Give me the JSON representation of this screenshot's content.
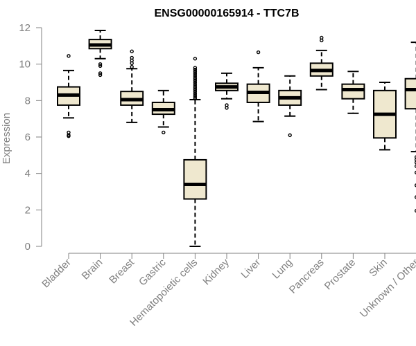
{
  "chart_data": {
    "type": "boxplot",
    "title": "ENSG00000165914 - TTC7B",
    "xlabel": "",
    "ylabel": "Expression",
    "ylim": [
      0,
      12
    ],
    "yticks": [
      0,
      2,
      4,
      6,
      8,
      10,
      12
    ],
    "box_color": "#efe8cf",
    "categories": [
      "Bladder",
      "Brain",
      "Breast",
      "Gastric",
      "Hematopoietic cells",
      "Kidney",
      "Liver",
      "Lung",
      "Pancreas",
      "Prostate",
      "Skin",
      "Unknown / Other"
    ],
    "boxes": [
      {
        "name": "Bladder",
        "min": 7.05,
        "q1": 7.75,
        "median": 8.3,
        "q3": 8.75,
        "max": 9.65,
        "outliers": [
          10.45,
          6.25,
          6.1,
          6.05
        ]
      },
      {
        "name": "Brain",
        "min": 10.3,
        "q1": 10.85,
        "median": 11.05,
        "q3": 11.35,
        "max": 11.85,
        "outliers": [
          10.0,
          9.9,
          9.5,
          9.4
        ]
      },
      {
        "name": "Breast",
        "min": 6.8,
        "q1": 7.75,
        "median": 8.05,
        "q3": 8.5,
        "max": 9.75,
        "outliers": [
          10.7,
          10.35,
          10.2,
          10.05,
          9.85
        ]
      },
      {
        "name": "Gastric",
        "min": 6.55,
        "q1": 7.25,
        "median": 7.5,
        "q3": 7.9,
        "max": 8.55,
        "outliers": [
          6.25
        ]
      },
      {
        "name": "Hematopoietic cells",
        "min": 0.0,
        "q1": 2.6,
        "median": 3.4,
        "q3": 4.75,
        "max": 8.05,
        "outliers": [
          10.3,
          9.8,
          9.7,
          9.6,
          9.5,
          9.4,
          9.3,
          9.2,
          9.1,
          9.0,
          8.9,
          8.8,
          8.7,
          8.6,
          8.5,
          8.4,
          8.3,
          8.2,
          8.1
        ]
      },
      {
        "name": "Kidney",
        "min": 8.1,
        "q1": 8.55,
        "median": 8.75,
        "q3": 8.95,
        "max": 9.5,
        "outliers": [
          7.75,
          7.6
        ]
      },
      {
        "name": "Liver",
        "min": 6.85,
        "q1": 7.9,
        "median": 8.45,
        "q3": 8.9,
        "max": 9.8,
        "outliers": [
          10.65
        ]
      },
      {
        "name": "Lung",
        "min": 7.15,
        "q1": 7.75,
        "median": 8.15,
        "q3": 8.55,
        "max": 9.35,
        "outliers": [
          6.1
        ]
      },
      {
        "name": "Pancreas",
        "min": 8.6,
        "q1": 9.35,
        "median": 9.65,
        "q3": 10.05,
        "max": 10.75,
        "outliers": [
          11.45,
          11.3
        ]
      },
      {
        "name": "Prostate",
        "min": 7.3,
        "q1": 8.1,
        "median": 8.6,
        "q3": 8.9,
        "max": 9.6,
        "outliers": []
      },
      {
        "name": "Skin",
        "min": 5.3,
        "q1": 5.95,
        "median": 7.25,
        "q3": 8.55,
        "max": 9.0,
        "outliers": []
      },
      {
        "name": "Unknown / Other",
        "min": 5.2,
        "q1": 7.55,
        "median": 8.6,
        "q3": 9.2,
        "max": 11.2,
        "outliers": [
          4.9,
          4.75,
          4.6,
          4.4,
          4.05,
          3.35,
          2.7,
          1.95
        ]
      }
    ]
  }
}
